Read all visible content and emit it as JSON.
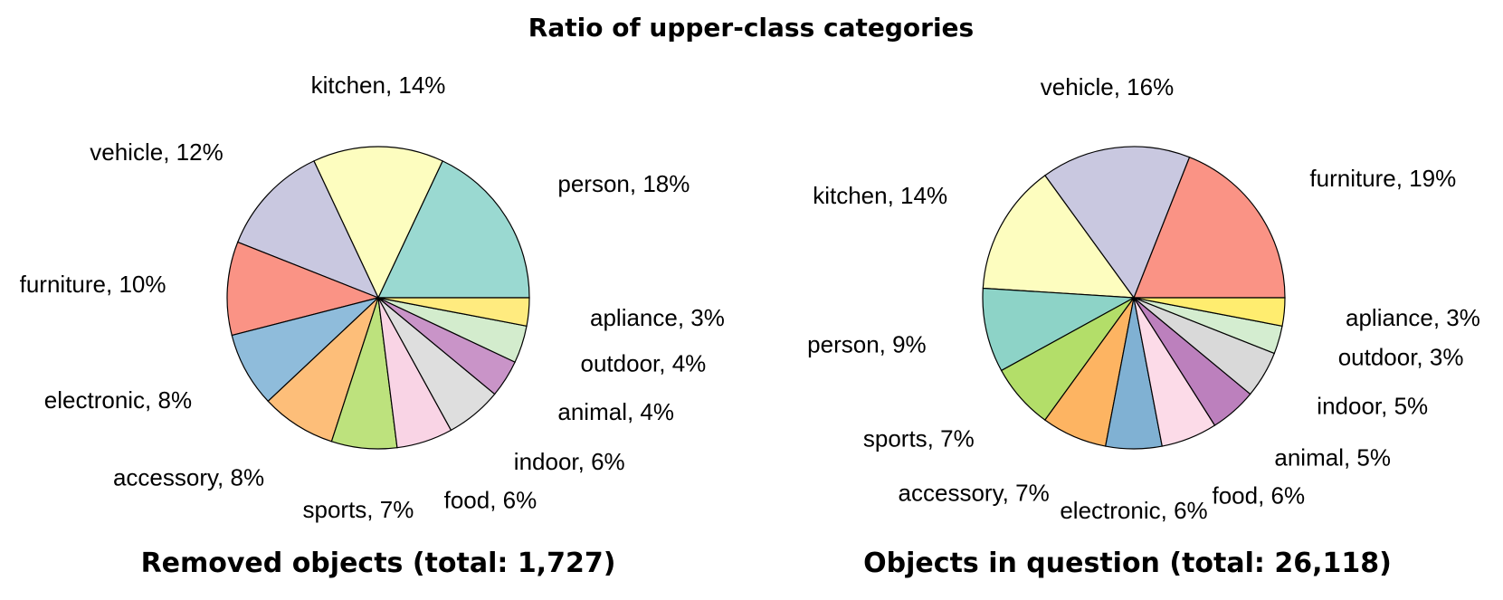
{
  "title": "Ratio of upper-class categories",
  "chart_data": [
    {
      "type": "pie",
      "caption": "Removed objects (total: 1,727)",
      "start_angle_deg": 0,
      "direction": "counterclockwise",
      "slices": [
        {
          "label": "person, 18%",
          "value": 18,
          "color": "#9ad9d1"
        },
        {
          "label": "kitchen, 14%",
          "value": 14,
          "color": "#fdfdbf"
        },
        {
          "label": "vehicle, 12%",
          "value": 12,
          "color": "#c9c8e0"
        },
        {
          "label": "furniture, 10%",
          "value": 10,
          "color": "#fa9385"
        },
        {
          "label": "electronic, 8%",
          "value": 8,
          "color": "#8fbcdb"
        },
        {
          "label": "accessory, 8%",
          "value": 8,
          "color": "#fdbe79"
        },
        {
          "label": "sports, 7%",
          "value": 7,
          "color": "#bde27d"
        },
        {
          "label": "food, 6%",
          "value": 6,
          "color": "#f9d4e5"
        },
        {
          "label": "indoor, 6%",
          "value": 6,
          "color": "#dedede"
        },
        {
          "label": "animal, 4%",
          "value": 4,
          "color": "#c994c8"
        },
        {
          "label": "outdoor, 4%",
          "value": 4,
          "color": "#d3eccd"
        },
        {
          "label": "apliance, 3%",
          "value": 3,
          "color": "#ffeb7f"
        }
      ]
    },
    {
      "type": "pie",
      "caption": "Objects in question (total: 26,118)",
      "start_angle_deg": 0,
      "direction": "counterclockwise",
      "slices": [
        {
          "label": "furniture, 19%",
          "value": 19,
          "color": "#fa9385"
        },
        {
          "label": "vehicle, 16%",
          "value": 16,
          "color": "#c9c8e0"
        },
        {
          "label": "kitchen, 14%",
          "value": 14,
          "color": "#fdfdbf"
        },
        {
          "label": "person, 9%",
          "value": 9,
          "color": "#8dd3c7"
        },
        {
          "label": "sports, 7%",
          "value": 7,
          "color": "#b3de69"
        },
        {
          "label": "accessory, 7%",
          "value": 7,
          "color": "#fdb462"
        },
        {
          "label": "electronic, 6%",
          "value": 6,
          "color": "#80b1d3"
        },
        {
          "label": "food, 6%",
          "value": 6,
          "color": "#fcdbe8"
        },
        {
          "label": "animal, 5%",
          "value": 5,
          "color": "#bc80bd"
        },
        {
          "label": "indoor, 5%",
          "value": 5,
          "color": "#d9d9d9"
        },
        {
          "label": "outdoor, 3%",
          "value": 3,
          "color": "#d4edd0"
        },
        {
          "label": "apliance, 3%",
          "value": 3,
          "color": "#ffed6f"
        }
      ]
    }
  ]
}
